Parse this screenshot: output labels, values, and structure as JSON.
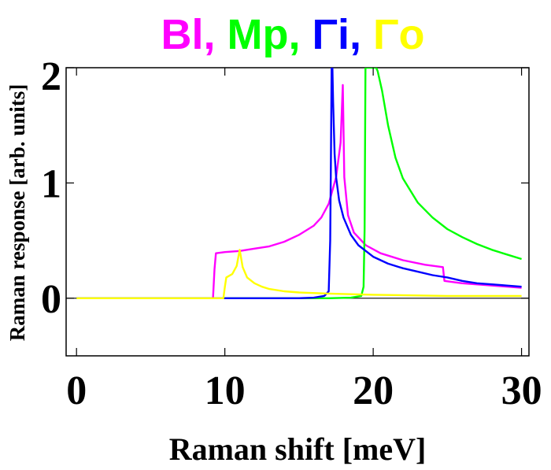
{
  "chart_data": {
    "type": "line",
    "title_parts": [
      {
        "text": "Bl",
        "color": "#ff00ff"
      },
      {
        "text": ", ",
        "color": "#ff00ff"
      },
      {
        "text": "Mp",
        "color": "#00ff00"
      },
      {
        "text": ", ",
        "color": "#00ff00"
      },
      {
        "text": "Γi",
        "color": "#0000ff"
      },
      {
        "text": ", ",
        "color": "#0000ff"
      },
      {
        "text": "Γo",
        "color": "#ffff00"
      }
    ],
    "xlabel": "Raman shift [meV]",
    "ylabel": "Raman response [arb. units]",
    "xlim": [
      -0.7,
      30.5
    ],
    "ylim": [
      -0.5,
      2
    ],
    "x_ticks": [
      0,
      10,
      20,
      30
    ],
    "x_tick_labels": [
      "0",
      "10",
      "20",
      "30"
    ],
    "y_ticks": [
      0,
      1,
      2
    ],
    "y_tick_labels": [
      "0",
      "1",
      "2"
    ],
    "baseline": 0,
    "series": [
      {
        "name": "Bl",
        "color": "#ff00ff",
        "x": [
          0,
          9.2,
          9.3,
          9.4,
          10,
          11,
          12,
          13,
          14,
          15,
          16,
          16.5,
          17,
          17.5,
          17.8,
          17.95,
          18.05,
          18.3,
          18.7,
          19.5,
          20.5,
          22,
          23.5,
          24.7,
          24.8,
          26,
          28,
          30
        ],
        "y": [
          0,
          0,
          0.25,
          0.39,
          0.4,
          0.41,
          0.43,
          0.45,
          0.49,
          0.55,
          0.63,
          0.7,
          0.82,
          1.05,
          1.35,
          1.85,
          1.05,
          0.72,
          0.57,
          0.46,
          0.39,
          0.33,
          0.29,
          0.27,
          0.15,
          0.13,
          0.11,
          0.09
        ]
      },
      {
        "name": "Mp",
        "color": "#00ff00",
        "x": [
          0,
          17,
          18.5,
          19.2,
          19.35,
          19.42,
          19.48,
          19.6,
          19.9,
          20.2,
          20.3,
          20.6,
          21,
          21.5,
          22,
          23,
          24,
          25,
          26,
          27,
          28,
          29,
          30
        ],
        "y": [
          0,
          0,
          0.005,
          0.02,
          0.1,
          0.6,
          2.0,
          2.0,
          2.0,
          2.0,
          1.97,
          1.8,
          1.5,
          1.22,
          1.04,
          0.83,
          0.7,
          0.6,
          0.53,
          0.47,
          0.42,
          0.38,
          0.34
        ]
      },
      {
        "name": "Γi",
        "color": "#0000ff",
        "x": [
          0,
          15,
          16,
          16.7,
          17.0,
          17.1,
          17.15,
          17.2,
          17.25,
          17.3,
          17.4,
          17.5,
          17.7,
          18,
          18.5,
          19,
          20,
          21,
          22,
          23,
          24,
          25,
          26,
          27,
          28,
          29,
          30
        ],
        "y": [
          0,
          0,
          0.005,
          0.02,
          0.06,
          0.5,
          1.2,
          2.0,
          2.0,
          1.7,
          1.25,
          1.05,
          0.85,
          0.7,
          0.55,
          0.46,
          0.36,
          0.3,
          0.26,
          0.23,
          0.2,
          0.18,
          0.15,
          0.13,
          0.12,
          0.11,
          0.1
        ]
      },
      {
        "name": "Γo",
        "color": "#ffff00",
        "x": [
          0,
          9.9,
          10.0,
          10.1,
          10.5,
          10.8,
          11.0,
          11.2,
          11.5,
          12,
          12.5,
          13,
          14,
          15,
          17,
          20,
          25,
          30
        ],
        "y": [
          0,
          0,
          0.1,
          0.18,
          0.21,
          0.28,
          0.42,
          0.27,
          0.18,
          0.13,
          0.1,
          0.08,
          0.06,
          0.05,
          0.04,
          0.03,
          0.02,
          0.02
        ]
      }
    ]
  }
}
